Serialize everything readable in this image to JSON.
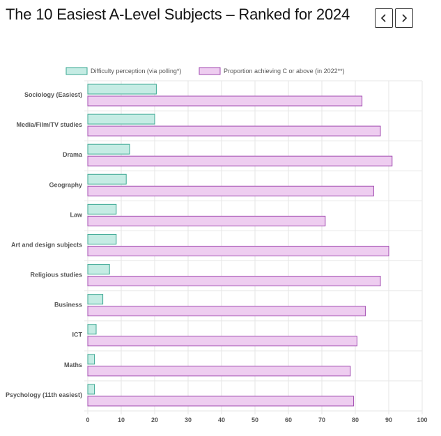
{
  "page": {
    "title": "The 10 Easiest A-Level Subjects – Ranked for 2024"
  },
  "nav": {
    "prev_icon": "chevron-left-icon",
    "next_icon": "chevron-right-icon"
  },
  "colors": {
    "series1_fill": "#c5ece4",
    "series1_stroke": "#3aa792",
    "series2_fill": "#eecdf0",
    "series2_stroke": "#a14bb0",
    "grid": "#e6e6e6",
    "title": "#141414"
  },
  "chart_data": {
    "type": "bar",
    "orientation": "horizontal",
    "categories": [
      "Sociology (Easiest)",
      "Media/Film/TV studies",
      "Drama",
      "Geography",
      "Law",
      "Art and design subjects",
      "Religious studies",
      "Business",
      "ICT",
      "Maths",
      "Psychology (11th easiest)"
    ],
    "series": [
      {
        "name": "Difficulty perception (via polling*)",
        "values": [
          20.5,
          20,
          12.5,
          11.5,
          8.5,
          8.5,
          6.5,
          4.5,
          2.5,
          2,
          2
        ]
      },
      {
        "name": "Proportion achieving C or above (in 2022**)",
        "values": [
          82,
          87.5,
          91,
          85.5,
          71,
          90,
          87.5,
          83,
          80.5,
          78.5,
          79.5
        ]
      }
    ],
    "xlim": [
      0,
      100
    ],
    "xticks": [
      "0",
      "10",
      "20",
      "30",
      "40",
      "50",
      "60",
      "70",
      "80",
      "90",
      "100"
    ],
    "grid": true,
    "legend_position": "top"
  }
}
